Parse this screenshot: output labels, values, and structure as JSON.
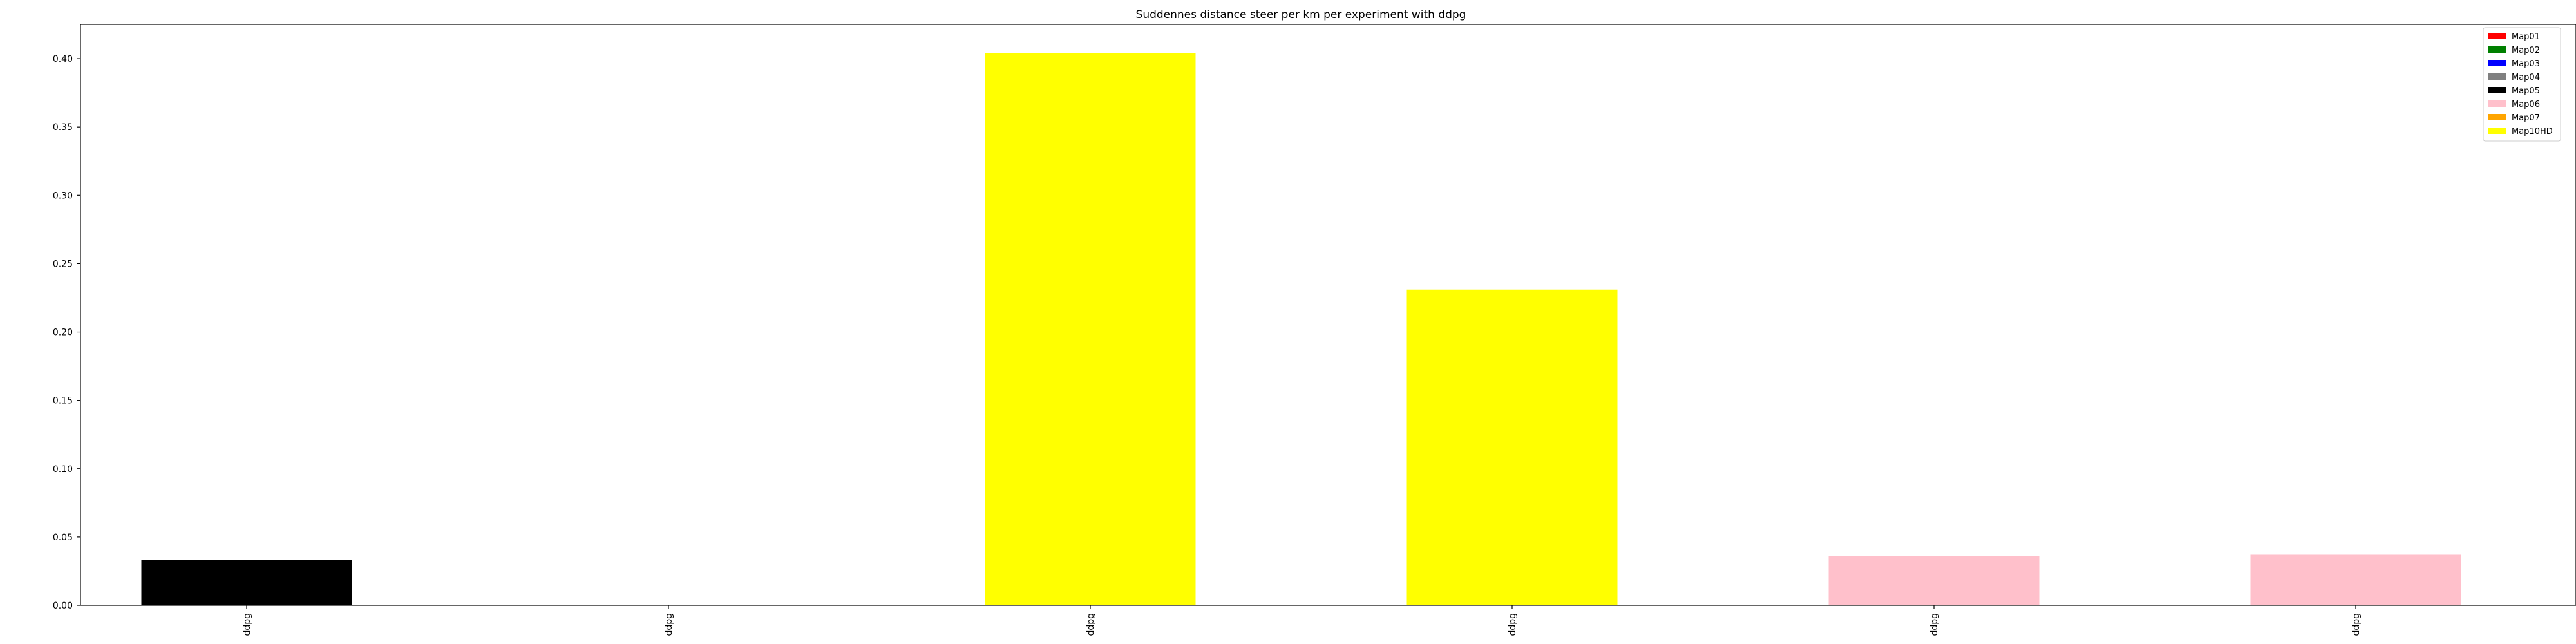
{
  "chart_data": {
    "type": "bar",
    "title": "Suddennes distance steer per km per experiment with ddpg",
    "xlabel": "",
    "ylabel": "",
    "categories": [
      "ddpg",
      "ddpg",
      "ddpg",
      "ddpg",
      "ddpg",
      "ddpg"
    ],
    "values": [
      0.033,
      0.0,
      0.404,
      0.231,
      0.036,
      0.037
    ],
    "bar_series": [
      "Map05",
      "Map05",
      "Map10HD",
      "Map10HD",
      "Map06",
      "Map06"
    ],
    "ylim": [
      0,
      0.425
    ],
    "yticks": [
      "0.00",
      "0.05",
      "0.10",
      "0.15",
      "0.20",
      "0.25",
      "0.30",
      "0.35",
      "0.40"
    ],
    "grid": false,
    "legend_position": "top-right",
    "legend": [
      {
        "name": "Map01",
        "color": "#ff0000"
      },
      {
        "name": "Map02",
        "color": "#008000"
      },
      {
        "name": "Map03",
        "color": "#0000ff"
      },
      {
        "name": "Map04",
        "color": "#808080"
      },
      {
        "name": "Map05",
        "color": "#000000"
      },
      {
        "name": "Map06",
        "color": "#ffc0cb"
      },
      {
        "name": "Map07",
        "color": "#ffa500"
      },
      {
        "name": "Map10HD",
        "color": "#ffff00"
      }
    ]
  }
}
